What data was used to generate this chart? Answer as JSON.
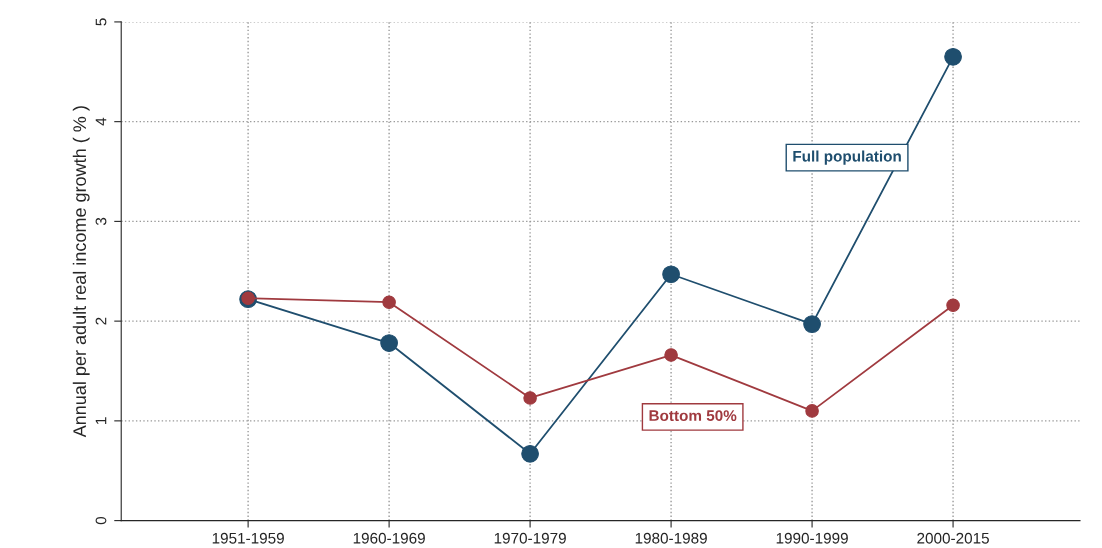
{
  "chart_data": {
    "type": "line",
    "ylabel": "Annual per adult real income growth ( % )",
    "categories": [
      "1951-1959",
      "1960-1969",
      "1970-1979",
      "1980-1989",
      "1990-1999",
      "2000-2015"
    ],
    "series": [
      {
        "name": "Full population",
        "color": "#1f4e6e",
        "values": [
          2.22,
          1.78,
          0.67,
          2.47,
          1.97,
          4.65
        ]
      },
      {
        "name": "Bottom 50%",
        "color": "#a03a3f",
        "values": [
          2.23,
          2.19,
          1.23,
          1.66,
          1.1,
          2.16
        ]
      }
    ],
    "ylim": [
      0,
      5
    ],
    "yticks": [
      0,
      1,
      2,
      3,
      4,
      5
    ],
    "grid": true,
    "marker": "circle",
    "line_style": "solid",
    "legend": false
  }
}
